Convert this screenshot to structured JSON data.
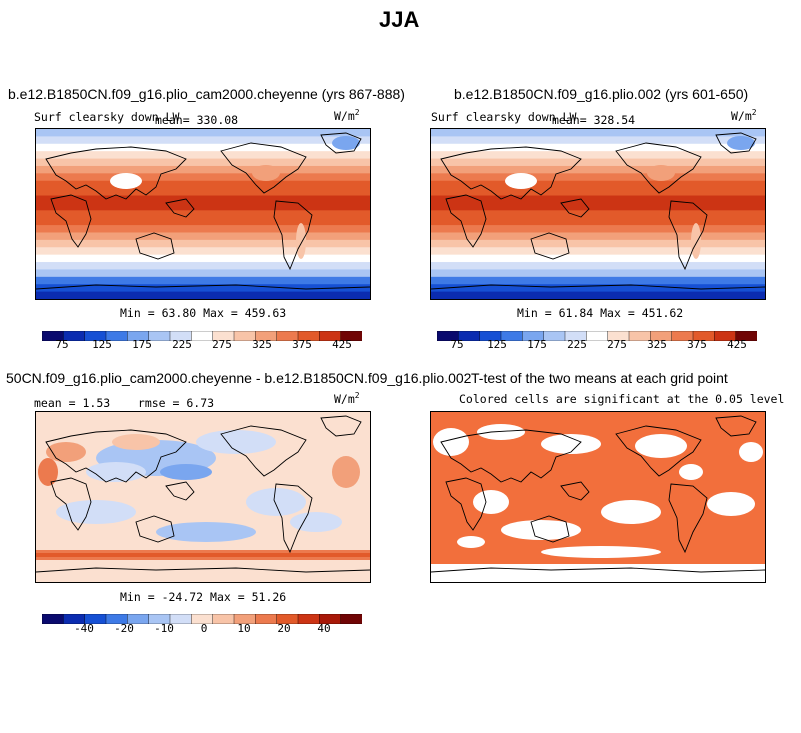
{
  "figure": {
    "season": "JJA",
    "shared_unit": "W/m",
    "unit_exponent": "2"
  },
  "colors": {
    "scale": [
      "#0a0a6e",
      "#0b2cb0",
      "#1650d4",
      "#3e7ae6",
      "#7aa6ef",
      "#a9c5f4",
      "#d2def7",
      "#ffffff",
      "#fbe0d0",
      "#f8c4a8",
      "#f2a07a",
      "#ec7a4e",
      "#e25a2a",
      "#cc3414",
      "#a81808",
      "#700505"
    ],
    "significance": "#f26f3c"
  },
  "chart_data": [
    {
      "type": "heatmap",
      "panel": "test-case",
      "title": "b.e12.B1850CN.f09_g16.plio_cam2000.cheyenne (yrs 867-888)",
      "variable_label": "Surf clearsky down LW",
      "mean_label": "mean=",
      "mean": "330.08",
      "min_label": "Min =",
      "min": "63.80",
      "max_label": "Max =",
      "max": "459.63",
      "colorbar_ticks": [
        "75",
        "125",
        "175",
        "225",
        "275",
        "325",
        "375",
        "425"
      ],
      "colorbar_range": [
        50,
        450
      ]
    },
    {
      "type": "heatmap",
      "panel": "reference-case",
      "title": "b.e12.B1850CN.f09_g16.plio.002 (yrs 601-650)",
      "variable_label": "Surf clearsky down LW",
      "mean_label": "mean=",
      "mean": "328.54",
      "min_label": "Min =",
      "min": "61.84",
      "max_label": "Max =",
      "max": "451.62",
      "colorbar_ticks": [
        "75",
        "125",
        "175",
        "225",
        "275",
        "325",
        "375",
        "425"
      ],
      "colorbar_range": [
        50,
        450
      ]
    },
    {
      "type": "heatmap",
      "panel": "difference",
      "title": "50CN.f09_g16.plio_cam2000.cheyenne - b.e12.B1850CN.f09_g16.plio.002",
      "mean_label": "mean =",
      "mean": "1.53",
      "rmse_label": "rmse =",
      "rmse": "6.73",
      "min_label": "Min =",
      "min": "-24.72",
      "max_label": "Max =",
      "max": "51.26",
      "colorbar_ticks": [
        "-40",
        "-20",
        "-10",
        "0",
        "10",
        "20",
        "40"
      ]
    },
    {
      "type": "heatmap",
      "panel": "t-test",
      "title": "T-test of the two means at each grid point",
      "subtitle": "Colored cells are significant at the 0.05 level"
    }
  ]
}
